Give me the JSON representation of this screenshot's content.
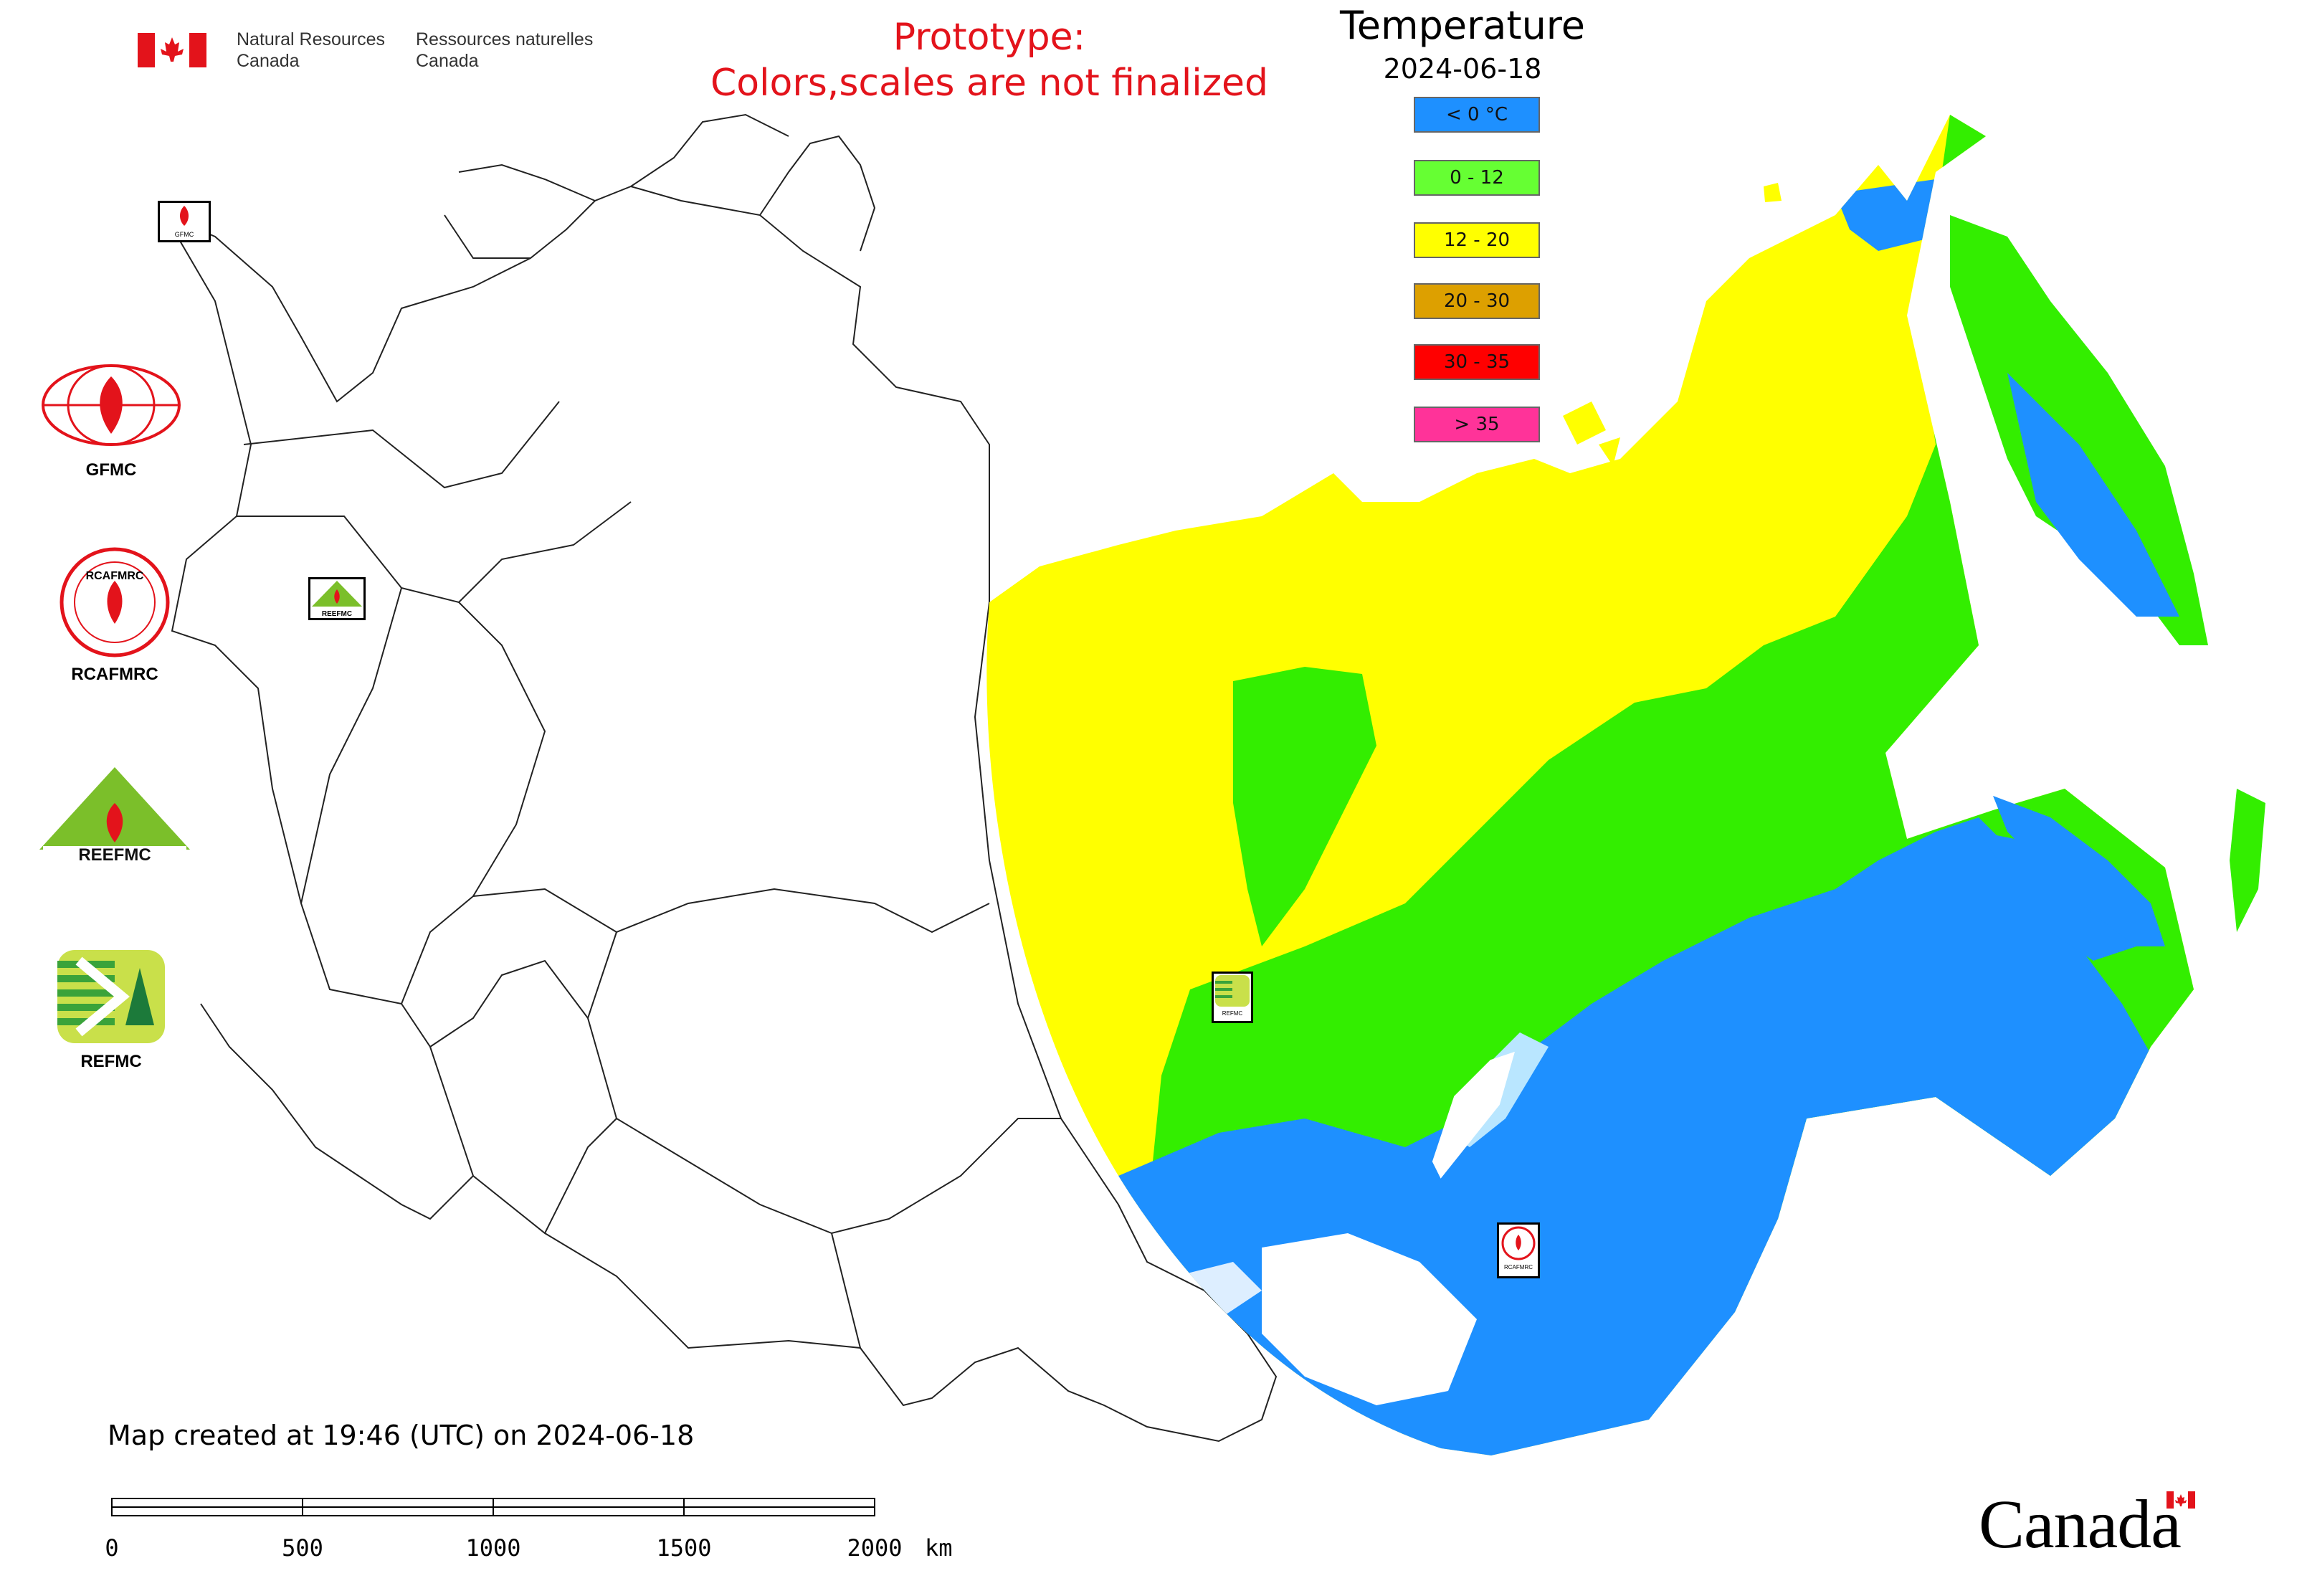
{
  "header": {
    "agency_en_line1": "Natural Resources",
    "agency_en_line2": "Canada",
    "agency_fr_line1": "Ressources naturelles",
    "agency_fr_line2": "Canada"
  },
  "prototype_notice": {
    "line1": "Prototype:",
    "line2": "Colors,scales are not finalized",
    "color": "#e3131b"
  },
  "legend": {
    "title": "Temperature",
    "date": "2024-06-18",
    "items": [
      {
        "label": "< 0 °C",
        "color": "#1e90ff"
      },
      {
        "label": "0 - 12",
        "color": "#66ff33"
      },
      {
        "label": "12 - 20",
        "color": "#ffff00"
      },
      {
        "label": "20 - 30",
        "color": "#dda000"
      },
      {
        "label": "30 - 35",
        "color": "#ff0000"
      },
      {
        "label": "> 35",
        "color": "#ff3399"
      }
    ]
  },
  "side_logos": [
    {
      "name": "GFMC",
      "icon": "gfmc-logo-icon"
    },
    {
      "name": "RCAFMRC",
      "icon": "rcafmrc-logo-icon"
    },
    {
      "name": "REEFMC",
      "icon": "reefmc-logo-icon"
    },
    {
      "name": "REFMC",
      "icon": "refmc-logo-icon"
    }
  ],
  "map_markers": [
    {
      "label": "GFMC"
    },
    {
      "label": "REEFMC"
    },
    {
      "label": "REFMC"
    },
    {
      "label": "RCAFMRC"
    }
  ],
  "footer": {
    "map_credit": "Map created at 19:46 (UTC) on 2024-06-18",
    "wordmark": "Canada"
  },
  "scale_bar": {
    "ticks": [
      "0",
      "500",
      "1000",
      "1500",
      "2000"
    ],
    "unit": "km"
  }
}
